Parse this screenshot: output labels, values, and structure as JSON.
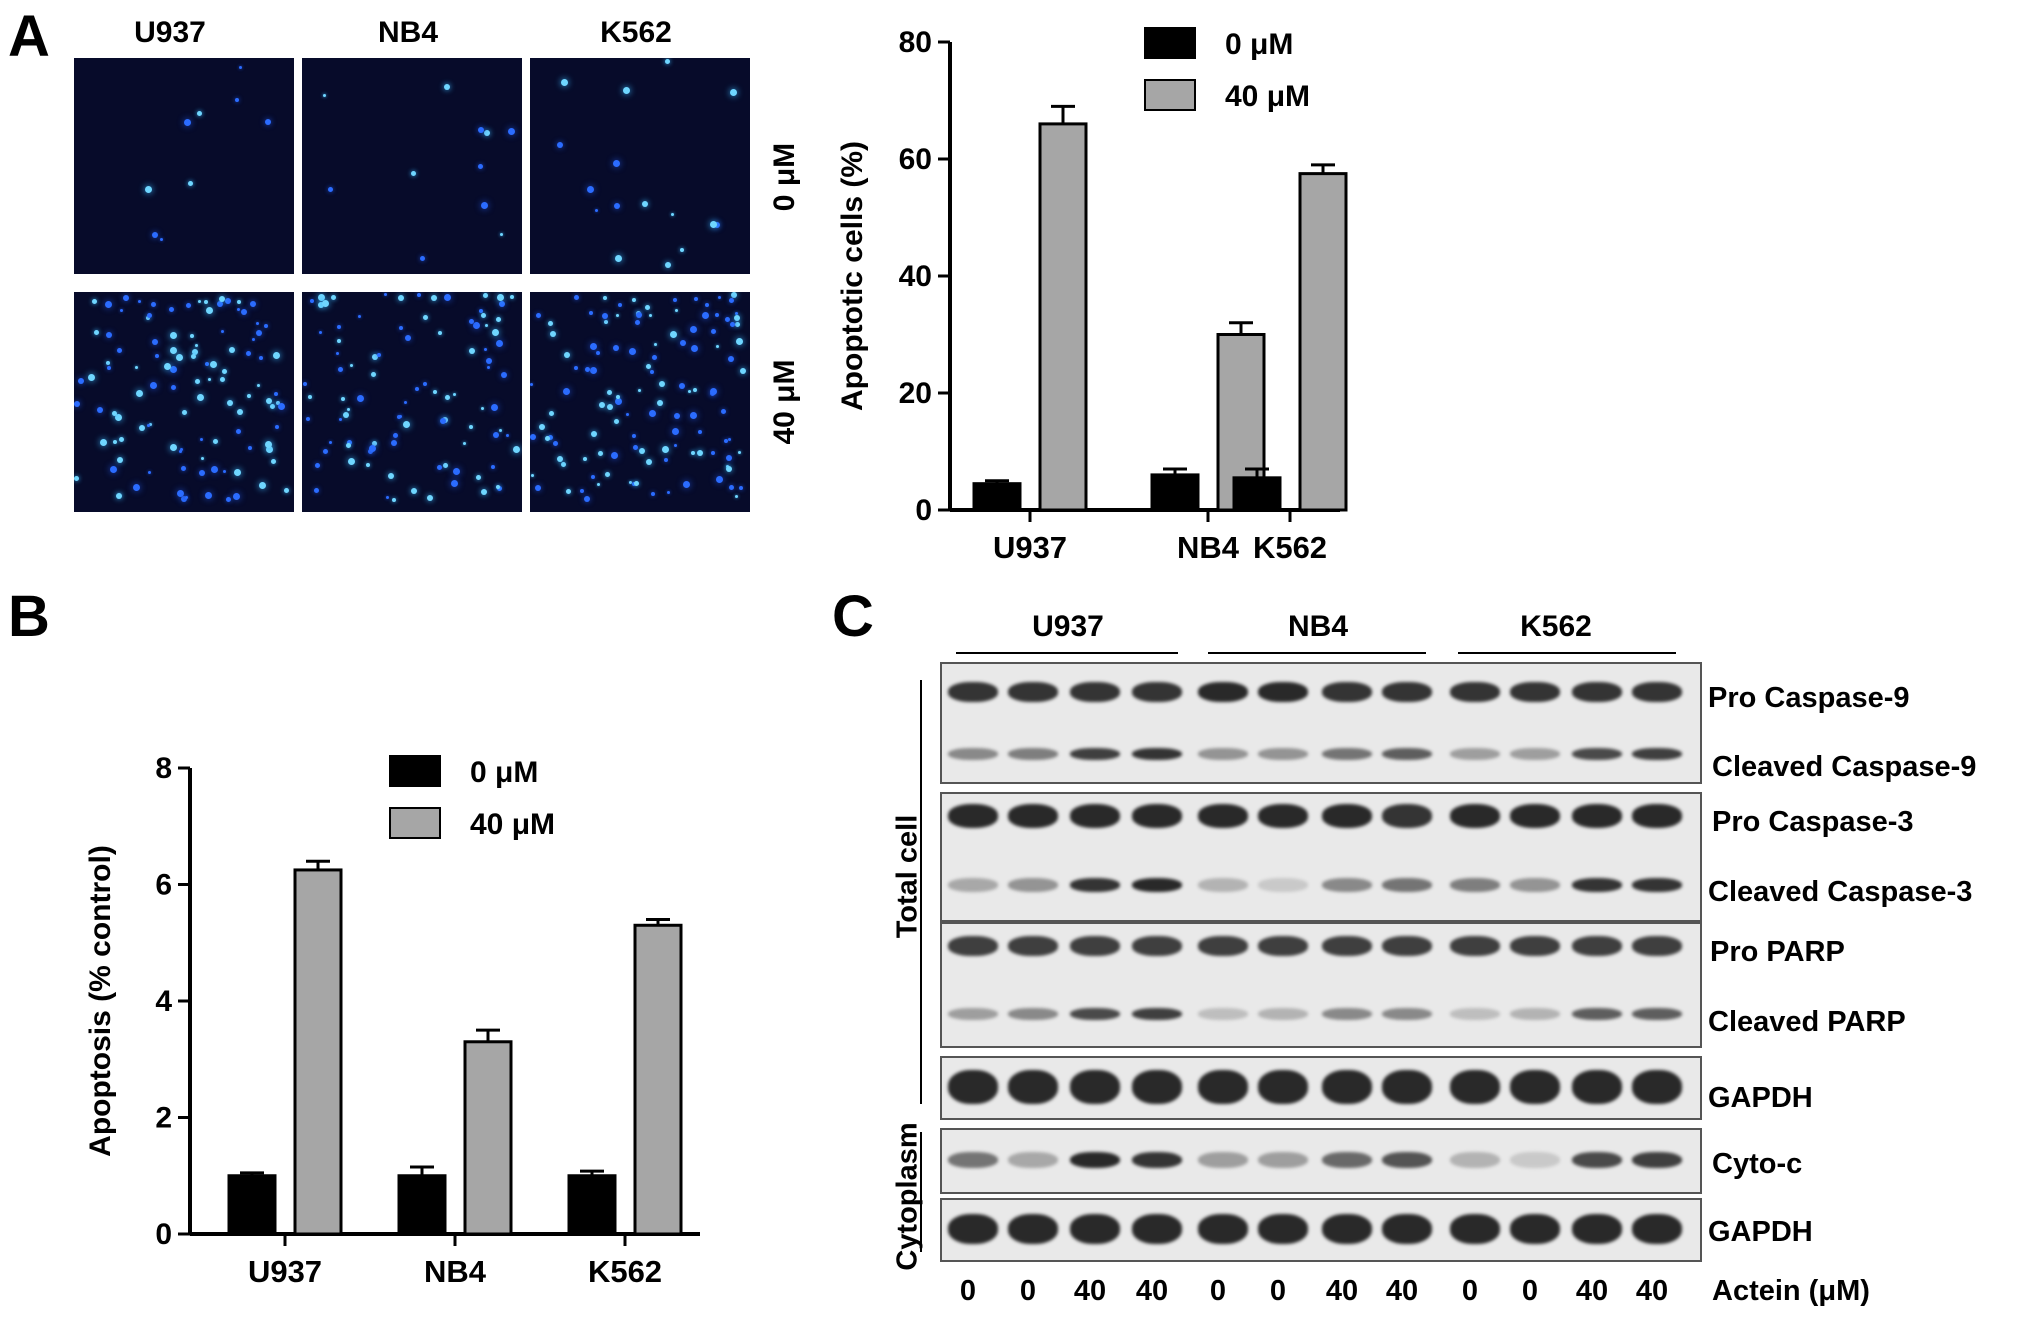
{
  "panels": {
    "A": {
      "letter": "A",
      "cell_lines": [
        "U937",
        "NB4",
        "K562"
      ],
      "concentrations": [
        "0 μM",
        "40 μM"
      ]
    },
    "B": {
      "letter": "B"
    },
    "C": {
      "letter": "C",
      "groups": [
        "U937",
        "NB4",
        "K562"
      ],
      "row_labels": [
        "Pro Caspase-9",
        "Cleaved Caspase-9",
        "Pro Caspase-3",
        "Cleaved Caspase-3",
        "Pro PARP",
        "Cleaved PARP",
        "GAPDH",
        "Cyto-c",
        "GAPDH"
      ],
      "side_labels": [
        "Total cell",
        "Cytoplasm"
      ],
      "lanes": [
        "0",
        "0",
        "40",
        "40",
        "0",
        "0",
        "40",
        "40",
        "0",
        "0",
        "40",
        "40"
      ],
      "lane_axis_label": "Actein (μM)"
    }
  },
  "chart_data": [
    {
      "type": "bar",
      "panel": "A",
      "categories": [
        "U937",
        "NB4",
        "K562"
      ],
      "series": [
        {
          "name": "0 μM",
          "values": [
            4.5,
            6,
            5.5
          ],
          "errors": [
            0.5,
            1,
            1.5
          ],
          "color": "#000000"
        },
        {
          "name": "40 μM",
          "values": [
            66,
            30,
            57.5
          ],
          "errors": [
            3,
            2,
            1.5
          ],
          "color": "#a6a6a6"
        }
      ],
      "ylabel": "Apoptotic cells (%)",
      "xlabel": "",
      "ylim": [
        0,
        80
      ],
      "yticks": [
        0,
        20,
        40,
        60,
        80
      ],
      "legend": "top"
    },
    {
      "type": "bar",
      "panel": "B",
      "categories": [
        "U937",
        "NB4",
        "K562"
      ],
      "series": [
        {
          "name": "0 μM",
          "values": [
            1.0,
            1.0,
            1.0
          ],
          "errors": [
            0.05,
            0.15,
            0.08
          ],
          "color": "#000000"
        },
        {
          "name": "40 μM",
          "values": [
            6.25,
            3.3,
            5.3
          ],
          "errors": [
            0.15,
            0.2,
            0.1
          ],
          "color": "#a6a6a6"
        }
      ],
      "ylabel": "Apoptosis (% control)",
      "xlabel": "",
      "ylim": [
        0,
        8
      ],
      "yticks": [
        0,
        2,
        4,
        6,
        8
      ],
      "legend": "top"
    }
  ]
}
